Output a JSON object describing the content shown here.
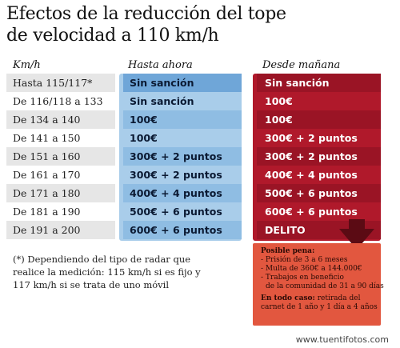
{
  "title": {
    "line1": "Efectos de la reducción del tope",
    "line2": "de velocidad a 110 km/h"
  },
  "headers": {
    "kmh": "Km/h",
    "hasta_ahora": "Hasta ahora",
    "desde_manana": "Desde mañana"
  },
  "rows": [
    {
      "kmh": "Hasta 115/117*",
      "ahora": "Sin sanción",
      "manana": "Sin sanción"
    },
    {
      "kmh": "De 116/118 a 133",
      "ahora": "Sin sanción",
      "manana": "100€"
    },
    {
      "kmh": "De 134 a 140",
      "ahora": "100€",
      "manana": "100€"
    },
    {
      "kmh": "De 141 a 150",
      "ahora": "100€",
      "manana": "300€ + 2 puntos"
    },
    {
      "kmh": "De 151 a 160",
      "ahora": "300€ + 2 puntos",
      "manana": "300€ + 2 puntos"
    },
    {
      "kmh": "De 161 a 170",
      "ahora": "300€ + 2 puntos",
      "manana": "400€ + 4 puntos"
    },
    {
      "kmh": "De 171 a 180",
      "ahora": "400€ + 4 puntos",
      "manana": "500€ + 6 puntos"
    },
    {
      "kmh": "De 181 a 190",
      "ahora": "500€ + 6 puntos",
      "manana": "600€ + 6 puntos"
    },
    {
      "kmh": "De 191 a 200",
      "ahora": "600€ + 6 puntos",
      "manana": "DELITO"
    }
  ],
  "note": {
    "line1": "(*) Dependiendo del tipo de radar que",
    "line2": "realice la medición: 115 km/h si es fijo y",
    "line3": "117 km/h si se trata de uno móvil"
  },
  "penalty": {
    "heading": "Posible pena:",
    "item1": "- Prisión de 3 a 6 meses",
    "item2": "- Multa de 360€ a 144.000€",
    "item3a": "- Trabajos en beneficio",
    "item3b": "de la comunidad de 31 a 90 días",
    "extra_heading": "En todo caso:",
    "extra_rest": " retirada del",
    "extra_line2": "carnet de 1 año y 1 día a 4 años"
  },
  "watermark": "www.tuentifotos.com",
  "colors": {
    "hasta_ahora_bg": "#a9cdea",
    "desde_manana_bg": "#b0192b",
    "penalty_bg": "#e2573f",
    "arrow": "#5b0b14"
  }
}
